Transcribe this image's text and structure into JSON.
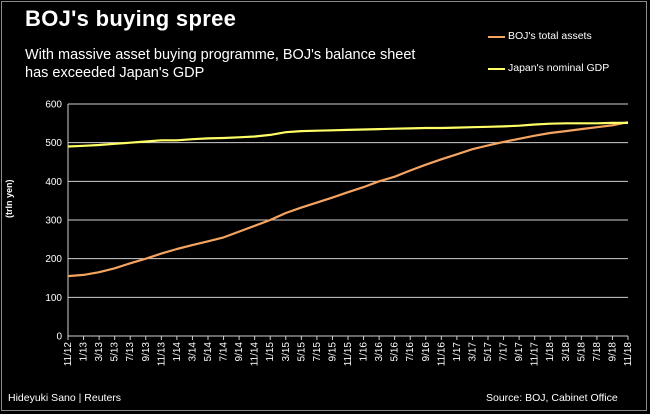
{
  "header": {
    "title": "BOJ's  buying spree",
    "subtitle": "With massive asset buying programme, BOJ's balance sheet has exceeded Japan's GDP"
  },
  "footer": {
    "credit": "Hideyuki Sano | Reuters",
    "source": "Source:  BOJ,  Cabinet  Office"
  },
  "chart_data": {
    "type": "line",
    "ylabel": "(trln yen)",
    "ylim": [
      0,
      600
    ],
    "yticks": [
      0,
      100,
      200,
      300,
      400,
      500,
      600
    ],
    "grid": true,
    "legend_position": "top-right",
    "categories": [
      "11/12",
      "1/13",
      "3/13",
      "5/13",
      "7/13",
      "9/13",
      "11/13",
      "1/14",
      "3/14",
      "5/14",
      "7/14",
      "9/14",
      "11/14",
      "1/15",
      "3/15",
      "5/15",
      "7/15",
      "9/15",
      "11/15",
      "1/16",
      "3/16",
      "5/16",
      "7/16",
      "9/16",
      "11/16",
      "1/17",
      "3/17",
      "5/17",
      "7/17",
      "9/17",
      "11/17",
      "1/18",
      "3/18",
      "5/18",
      "7/18",
      "9/18",
      "11/18"
    ],
    "series": [
      {
        "name": "BOJ's total assets",
        "color": "#f4a460",
        "values": [
          155,
          158,
          165,
          175,
          188,
          200,
          213,
          225,
          235,
          245,
          255,
          270,
          285,
          300,
          318,
          332,
          345,
          358,
          372,
          385,
          400,
          412,
          428,
          443,
          457,
          470,
          483,
          493,
          502,
          510,
          518,
          525,
          530,
          535,
          540,
          545,
          553
        ]
      },
      {
        "name": "Japan's nominal GDP",
        "color": "#ffff66",
        "values": [
          490,
          492,
          494,
          497,
          500,
          503,
          506,
          506,
          509,
          511,
          512,
          514,
          516,
          520,
          527,
          530,
          531,
          532,
          533,
          534,
          535,
          536,
          537,
          538,
          538,
          539,
          540,
          541,
          542,
          544,
          547,
          549,
          550,
          550,
          550,
          551,
          551
        ]
      }
    ]
  }
}
